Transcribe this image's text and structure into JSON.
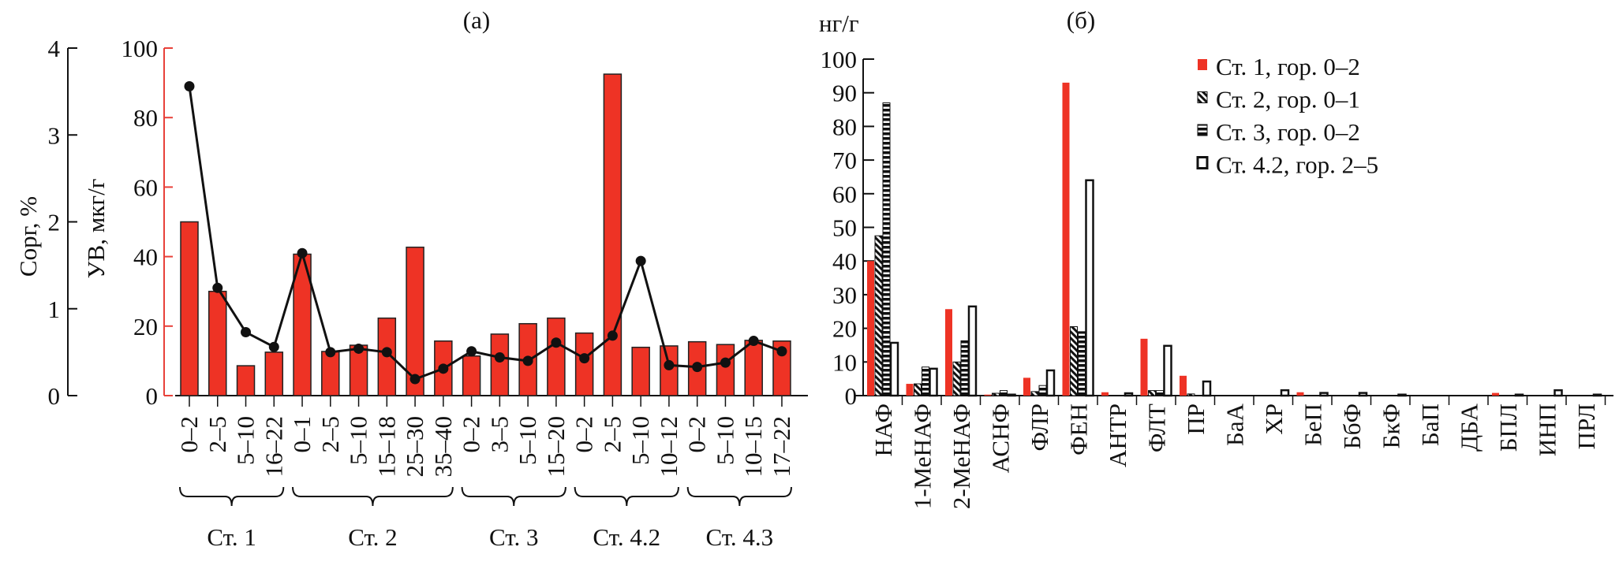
{
  "chart_data": [
    {
      "type": "bar",
      "title": "(a)",
      "ylabel": "УВ, мкг/г",
      "ylabel_right": "Cорг, %",
      "ylim": [
        0,
        100
      ],
      "ylim_secondary": [
        0,
        4
      ],
      "yticks": [
        "0",
        "20",
        "40",
        "60",
        "80",
        "100"
      ],
      "yticks_secondary": [
        "0",
        "1",
        "2",
        "3",
        "4"
      ],
      "axis_color": "#e8413a",
      "bar_color": "#ee3325",
      "groups": [
        {
          "label": "Ст. 1",
          "count": 4
        },
        {
          "label": "Ст. 2",
          "count": 6
        },
        {
          "label": "Ст. 3",
          "count": 4
        },
        {
          "label": "Ст. 4.2",
          "count": 4
        },
        {
          "label": "Ст. 4.3",
          "count": 4
        }
      ],
      "categories": [
        "0–2",
        "2–5",
        "5–10",
        "16–22",
        "0–1",
        "2–5",
        "5–10",
        "15–18",
        "25–30",
        "35–40",
        "0–2",
        "3–5",
        "5–10",
        "15–20",
        "0–2",
        "2–5",
        "5–10",
        "10–12",
        "0–2",
        "5–10",
        "10–15",
        "17–22"
      ],
      "series": [
        {
          "axis": "primary",
          "type": "bar",
          "values": [
            50,
            30,
            8.6,
            12.5,
            40.7,
            12.7,
            14.5,
            22.3,
            42.7,
            15.7,
            11.4,
            17.7,
            20.7,
            22.3,
            18,
            92.5,
            13.9,
            14.3,
            15.5,
            14.7,
            15.9,
            15.7
          ]
        },
        {
          "axis": "secondary",
          "type": "line",
          "values": [
            3.56,
            1.24,
            0.73,
            0.56,
            1.64,
            0.5,
            0.54,
            0.5,
            0.19,
            0.31,
            0.51,
            0.44,
            0.4,
            0.61,
            0.43,
            0.69,
            1.55,
            0.35,
            0.33,
            0.38,
            0.63,
            0.51
          ]
        }
      ]
    },
    {
      "type": "bar",
      "title": "(б)",
      "ylabel": "нг/г",
      "ylim": [
        0,
        100
      ],
      "yticks": [
        "0",
        "10",
        "20",
        "30",
        "40",
        "50",
        "60",
        "70",
        "80",
        "90",
        "100"
      ],
      "legend_position": "top-right",
      "categories": [
        "НАФ",
        "1-МеНАФ",
        "2-МеНАФ",
        "АСНФ",
        "ФЛР",
        "ФЕН",
        "АНТР",
        "ФЛТ",
        "ПР",
        "БаА",
        "ХР",
        "БеП",
        "БбФ",
        "БкФ",
        "БаП",
        "ДБА",
        "БПЛ",
        "ИНП",
        "ПРЛ"
      ],
      "series": [
        {
          "name": "Ст. 1, гор. 0–2",
          "pattern": "solid-red",
          "values": [
            40,
            3.5,
            25.7,
            0.3,
            5.3,
            93,
            1,
            16.9,
            5.9,
            0,
            0,
            1,
            0,
            0,
            0,
            0,
            0.8,
            0,
            0
          ]
        },
        {
          "name": "Ст. 2, гор. 0–1",
          "pattern": "diagonal-hatch",
          "values": [
            47.5,
            3.5,
            10,
            0.7,
            1.2,
            20.5,
            0,
            1.5,
            0.5,
            0,
            0,
            0,
            0,
            0,
            0,
            0,
            0,
            0,
            0
          ]
        },
        {
          "name": "Ст. 3, гор. 0–2",
          "pattern": "horizontal-stripes",
          "values": [
            87,
            8.5,
            16.3,
            1.5,
            3,
            19,
            0,
            1.5,
            0,
            0,
            0,
            0,
            0,
            0,
            0,
            0,
            0,
            0,
            0
          ]
        },
        {
          "name": "Ст. 4.2, гор. 2–5",
          "pattern": "open",
          "values": [
            15.7,
            8,
            26.5,
            0.3,
            7.5,
            64,
            0.7,
            14.8,
            4.2,
            0,
            1.6,
            0.8,
            0.8,
            0.3,
            0,
            0,
            0.3,
            1.6,
            0.3
          ]
        }
      ]
    }
  ]
}
